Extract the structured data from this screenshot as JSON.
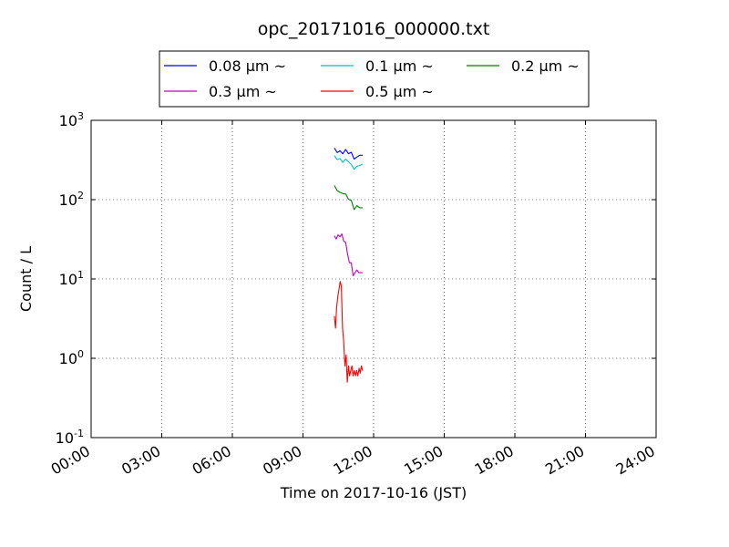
{
  "chart_data": {
    "type": "line",
    "title": "opc_20171016_000000.txt",
    "xlabel": "Time on 2017-10-16 (JST)",
    "ylabel": "Count / L",
    "x_unit": "hours (JST)",
    "xlim": [
      0,
      24
    ],
    "ylim": [
      0.1,
      1000
    ],
    "y_scale": "log",
    "grid": true,
    "grid_style": "dotted",
    "legend_placement": "top-center",
    "x_ticks": [
      {
        "value": 0,
        "label": "00:00"
      },
      {
        "value": 3,
        "label": "03:00"
      },
      {
        "value": 6,
        "label": "06:00"
      },
      {
        "value": 9,
        "label": "09:00"
      },
      {
        "value": 12,
        "label": "12:00"
      },
      {
        "value": 15,
        "label": "15:00"
      },
      {
        "value": 18,
        "label": "18:00"
      },
      {
        "value": 21,
        "label": "21:00"
      },
      {
        "value": 24,
        "label": "24:00"
      }
    ],
    "y_ticks": [
      {
        "value": 0.1,
        "base": "10",
        "exp": "-1"
      },
      {
        "value": 1,
        "base": "10",
        "exp": "0"
      },
      {
        "value": 10,
        "base": "10",
        "exp": "1"
      },
      {
        "value": 100,
        "base": "10",
        "exp": "2"
      },
      {
        "value": 1000,
        "base": "10",
        "exp": "3"
      }
    ],
    "series": [
      {
        "name": "0.08 μm ~",
        "color": "#0000ff",
        "x": [
          10.33,
          10.45,
          10.57,
          10.69,
          10.81,
          10.93,
          11.05,
          11.17,
          11.29,
          11.41,
          11.53
        ],
        "y": [
          449,
          392,
          414,
          379,
          430,
          380,
          396,
          324,
          345,
          363,
          363
        ]
      },
      {
        "name": "0.1 μm ~",
        "color": "#00bfbf",
        "x": [
          10.33,
          10.45,
          10.57,
          10.69,
          10.81,
          10.93,
          11.05,
          11.17,
          11.29,
          11.41,
          11.53
        ],
        "y": [
          359,
          320,
          330,
          296,
          325,
          300,
          278,
          242,
          263,
          270,
          281
        ]
      },
      {
        "name": "0.2 μm ~",
        "color": "#008000",
        "x": [
          10.33,
          10.45,
          10.57,
          10.69,
          10.81,
          10.93,
          11.05,
          11.17,
          11.29,
          11.41,
          11.53
        ],
        "y": [
          151,
          130,
          124,
          119,
          118,
          101,
          98,
          75,
          84,
          79,
          79
        ]
      },
      {
        "name": "0.3 μm ~",
        "color": "#bf00bf",
        "x": [
          10.33,
          10.41,
          10.49,
          10.57,
          10.65,
          10.73,
          10.81,
          10.89,
          10.97,
          11.05,
          11.13,
          11.21,
          11.29,
          11.37,
          11.45,
          11.53
        ],
        "y": [
          35,
          32,
          36,
          34,
          37,
          30,
          29,
          21,
          16,
          16,
          11,
          12,
          13,
          12,
          12,
          12
        ]
      },
      {
        "name": "0.5 μm ~",
        "color": "#ff0000",
        "x": [
          10.33,
          10.38,
          10.43,
          10.48,
          10.53,
          10.58,
          10.63,
          10.68,
          10.73,
          10.78,
          10.83,
          10.88,
          10.93,
          10.98,
          11.03,
          11.08,
          11.13,
          11.18,
          11.23,
          11.28,
          11.33,
          11.38,
          11.43,
          11.48,
          11.53
        ],
        "y": [
          3.4,
          2.4,
          4.4,
          6.0,
          7.4,
          9.3,
          8.1,
          2.4,
          1.6,
          0.8,
          1.1,
          0.5,
          0.8,
          0.6,
          0.7,
          0.8,
          0.6,
          0.7,
          0.6,
          0.7,
          0.6,
          0.75,
          0.65,
          0.8,
          0.7
        ]
      }
    ]
  }
}
